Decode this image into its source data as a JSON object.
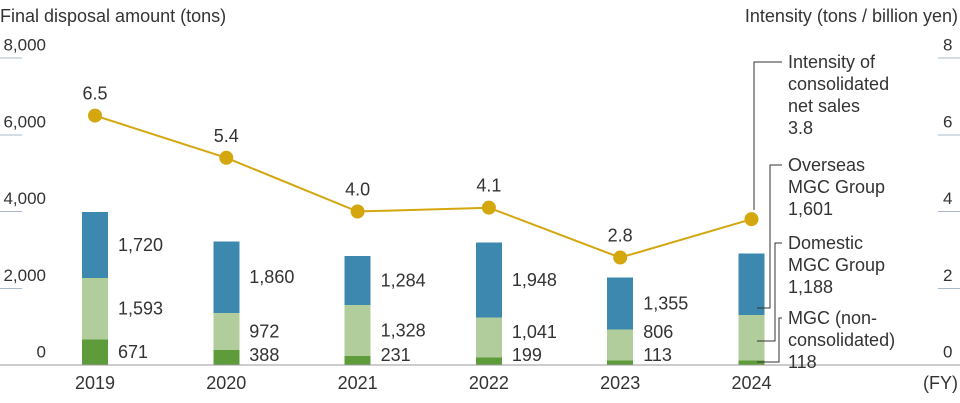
{
  "chart_data": {
    "type": "bar",
    "stacked": true,
    "categories": [
      "2019",
      "2020",
      "2021",
      "2022",
      "2023",
      "2024"
    ],
    "xlabel": "(FY)",
    "ylabel": "Final disposal amount (tons)",
    "ylim": [
      0,
      8000
    ],
    "yticks": [
      0,
      2000,
      4000,
      6000,
      8000
    ],
    "y2label": "Intensity (tons / billion yen)",
    "y2lim": [
      0,
      8
    ],
    "y2ticks": [
      0,
      2,
      4,
      6,
      8
    ],
    "grid": false,
    "legend": "right",
    "series": [
      {
        "name": "MGC (non-consolidated)",
        "color": "#5e9b3a",
        "values": [
          671,
          388,
          231,
          199,
          113,
          118
        ]
      },
      {
        "name": "Domestic MGC Group",
        "color": "#b1cd9c",
        "values": [
          1593,
          972,
          1328,
          1041,
          806,
          1188
        ]
      },
      {
        "name": "Overseas MGC Group",
        "color": "#3c88ae",
        "values": [
          1720,
          1860,
          1284,
          1948,
          1355,
          1601
        ]
      }
    ],
    "y2_series": [
      {
        "name": "Intensity of consolidated net sales",
        "type": "line",
        "color": "#d4a70f",
        "values": [
          6.5,
          5.4,
          4.0,
          4.1,
          2.8,
          3.8
        ]
      }
    ]
  }
}
